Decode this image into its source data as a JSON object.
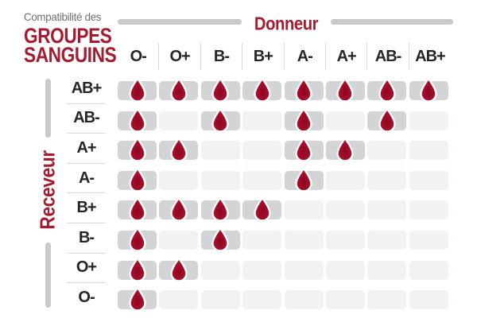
{
  "title": {
    "pretitle": "Compatibilité des",
    "line1": "GROUPES",
    "line2": "SANGUINS"
  },
  "axes": {
    "donor_label": "Donneur",
    "receiver_label": "Receveur"
  },
  "chart_data": {
    "type": "heatmap",
    "title": "Compatibilité des GROUPES SANGUINS",
    "x_axis_label": "Donneur",
    "y_axis_label": "Receveur",
    "columns": [
      "O-",
      "O+",
      "B-",
      "B+",
      "A-",
      "A+",
      "AB-",
      "AB+"
    ],
    "rows": [
      "AB+",
      "AB-",
      "A+",
      "A-",
      "B+",
      "B-",
      "O+",
      "O-"
    ],
    "matrix": [
      [
        1,
        1,
        1,
        1,
        1,
        1,
        1,
        1
      ],
      [
        1,
        0,
        1,
        0,
        1,
        0,
        1,
        0
      ],
      [
        1,
        1,
        0,
        0,
        1,
        1,
        0,
        0
      ],
      [
        1,
        0,
        0,
        0,
        1,
        0,
        0,
        0
      ],
      [
        1,
        1,
        1,
        1,
        0,
        0,
        0,
        0
      ],
      [
        1,
        0,
        1,
        0,
        0,
        0,
        0,
        0
      ],
      [
        1,
        1,
        0,
        0,
        0,
        0,
        0,
        0
      ],
      [
        1,
        0,
        0,
        0,
        0,
        0,
        0,
        0
      ]
    ],
    "cell_marker": "blood-drop",
    "legend_position": "none",
    "grid": "off"
  },
  "icons": {
    "compatible": "blood-drop-icon"
  },
  "colors": {
    "accent_red": "#a51c30",
    "drop_red_dark": "#8c0721",
    "drop_red_mid": "#a30d2a",
    "drop_red_light": "#c41a38",
    "axis_bar_gray": "#c8c9ca",
    "filled_cell_gray": "#d2d4d5",
    "empty_cell_gray": "#f1f2f2",
    "label_text": "#272526",
    "pretitle_gray": "#6d6e71",
    "separator_gray": "#d9dadb"
  }
}
